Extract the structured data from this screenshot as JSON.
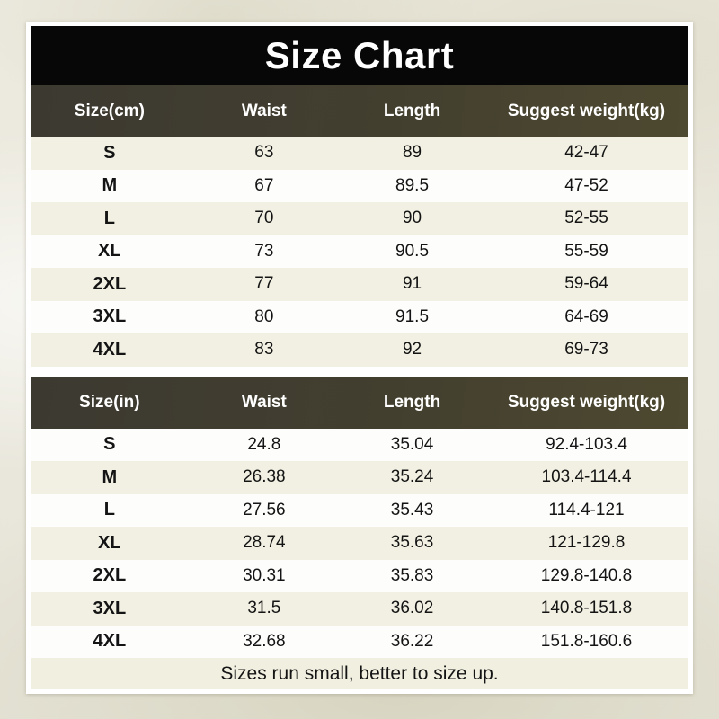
{
  "title": "Size Chart",
  "tables": [
    {
      "name": "size-table-cm",
      "unit": "cm",
      "headers": [
        "Size(cm)",
        "Waist",
        "Length",
        "Suggest weight(kg)"
      ],
      "rows": [
        [
          "S",
          "63",
          "89",
          "42-47"
        ],
        [
          "M",
          "67",
          "89.5",
          "47-52"
        ],
        [
          "L",
          "70",
          "90",
          "52-55"
        ],
        [
          "XL",
          "73",
          "90.5",
          "55-59"
        ],
        [
          "2XL",
          "77",
          "91",
          "59-64"
        ],
        [
          "3XL",
          "80",
          "91.5",
          "64-69"
        ],
        [
          "4XL",
          "83",
          "92",
          "69-73"
        ]
      ],
      "shaded_rows": [
        0,
        2,
        4,
        6
      ]
    },
    {
      "name": "size-table-in",
      "unit": "in",
      "headers": [
        "Size(in)",
        "Waist",
        "Length",
        "Suggest weight(kg)"
      ],
      "rows": [
        [
          "S",
          "24.8",
          "35.04",
          "92.4-103.4"
        ],
        [
          "M",
          "26.38",
          "35.24",
          "103.4-114.4"
        ],
        [
          "L",
          "27.56",
          "35.43",
          "114.4-121"
        ],
        [
          "XL",
          "28.74",
          "35.63",
          "121-129.8"
        ],
        [
          "2XL",
          "30.31",
          "35.83",
          "129.8-140.8"
        ],
        [
          "3XL",
          "31.5",
          "36.02",
          "140.8-151.8"
        ],
        [
          "4XL",
          "32.68",
          "36.22",
          "151.8-160.6"
        ]
      ],
      "shaded_rows": [
        1,
        3,
        5
      ]
    }
  ],
  "footer_note": "Sizes run small, better to size up.",
  "colors": {
    "title_bg": "#070707",
    "title_text": "#ffffff",
    "header_bg": "#433f2f",
    "header_text": "#ffffff",
    "row_shaded": "#f2f0e2",
    "row_plain": "#fdfdfc",
    "footer_bg": "#f1efe0",
    "cell_text": "#141414",
    "card_bg": "#ffffff",
    "page_bg": "#e9e7dc"
  }
}
